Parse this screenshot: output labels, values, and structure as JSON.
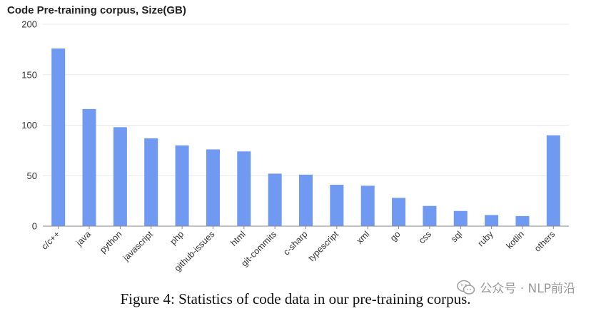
{
  "chart_data": {
    "type": "bar",
    "title": "Code Pre-training corpus, Size(GB)",
    "categories": [
      "c/c++",
      "java",
      "python",
      "javascript",
      "php",
      "github-issues",
      "html",
      "git-commits",
      "c-sharp",
      "typescript",
      "xml",
      "go",
      "css",
      "sql",
      "ruby",
      "kotlin",
      "others"
    ],
    "values": [
      176,
      116,
      98,
      87,
      80,
      76,
      74,
      52,
      51,
      41,
      40,
      28,
      20,
      15,
      11,
      10,
      90
    ],
    "ylim": [
      0,
      200
    ],
    "yticks": [
      0,
      50,
      100,
      150,
      200
    ],
    "xlabel": "",
    "ylabel": "",
    "grid": true,
    "bar_color": "#7099f1",
    "grid_color": "#e8e8e8",
    "axis_color": "#8a8a8a"
  },
  "caption": "Figure 4: Statistics of code data in our pre-training corpus.",
  "watermark": {
    "text": "公众号 · NLP前沿",
    "icon": "wechat-icon"
  }
}
